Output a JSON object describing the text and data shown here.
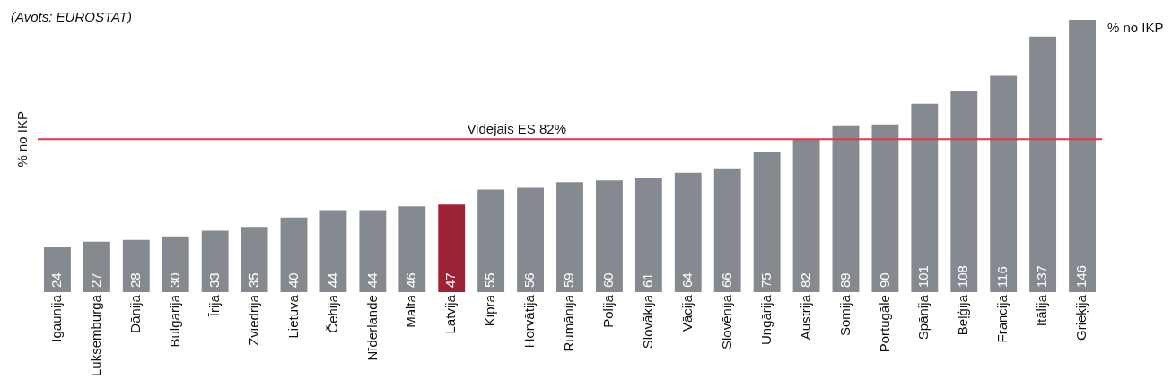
{
  "chart_data": {
    "type": "bar",
    "ylabel": "% no IKP",
    "annotations": [
      "(Avots: EUROSTAT)",
      "% no IKP"
    ],
    "categories": [
      "Igaunija",
      "Luksemburga",
      "Dānija",
      "Bulgārija",
      "Īrija",
      "Zviedrija",
      "Lietuva",
      "Čehija",
      "Nīderlande",
      "Malta",
      "Latvija",
      "Kipra",
      "Horvātija",
      "Rumānija",
      "Polija",
      "Slovākija",
      "Vācija",
      "Slovēnija",
      "Ungārija",
      "Austrija",
      "Somija",
      "Portugāle",
      "Spānija",
      "Beļģija",
      "Francija",
      "Itālija",
      "Grieķija"
    ],
    "values": [
      24,
      27,
      28,
      30,
      33,
      35,
      40,
      44,
      44,
      46,
      47,
      55,
      56,
      59,
      60,
      61,
      64,
      66,
      75,
      82,
      89,
      90,
      101,
      108,
      116,
      137,
      146
    ],
    "colors": [
      "#858a91",
      "#858a91",
      "#858a91",
      "#858a91",
      "#858a91",
      "#858a91",
      "#858a91",
      "#858a91",
      "#858a91",
      "#858a91",
      "#9b2335",
      "#858a91",
      "#858a91",
      "#858a91",
      "#858a91",
      "#858a91",
      "#858a91",
      "#858a91",
      "#858a91",
      "#858a91",
      "#858a91",
      "#858a91",
      "#858a91",
      "#858a91",
      "#858a91",
      "#858a91",
      "#858a91"
    ],
    "ref_lines": [
      {
        "axis": "y",
        "value": 82,
        "label": "Vidējais ES 82%",
        "color": "#e8334a"
      }
    ],
    "data_labels": true,
    "grid": false,
    "legend": false
  }
}
